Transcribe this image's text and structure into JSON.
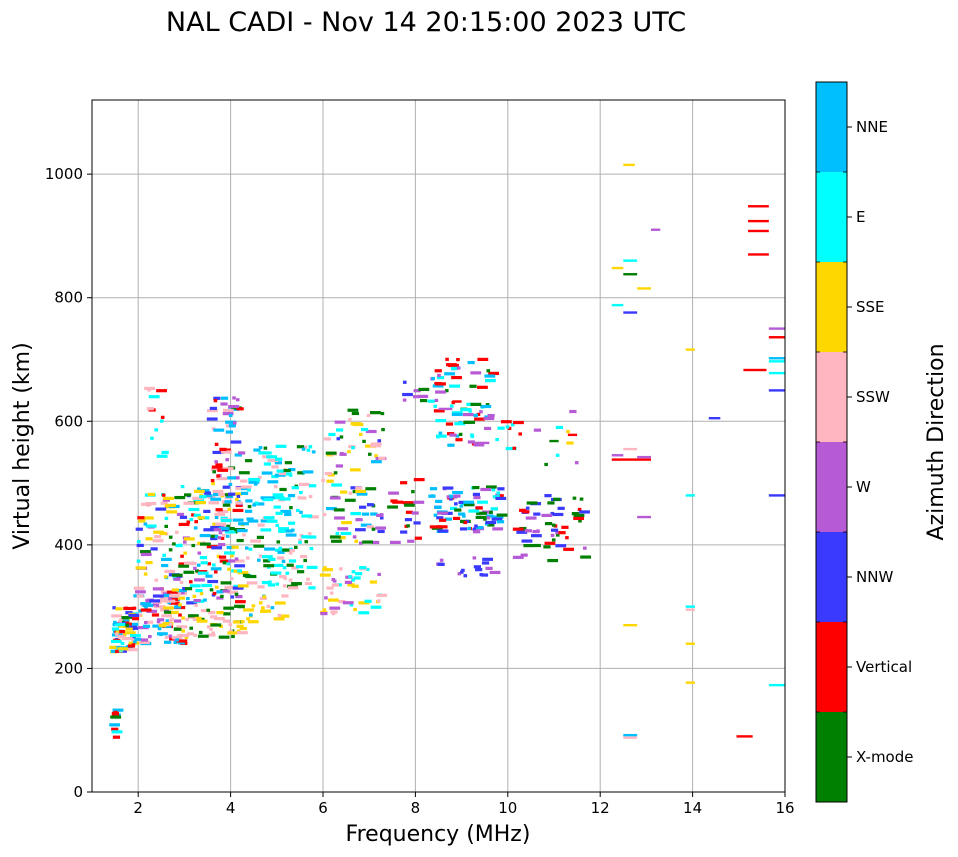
{
  "chart_data": {
    "type": "scatter",
    "title": "NAL CADI - Nov 14 20:15:00 2023 UTC",
    "xlabel": "Frequency (MHz)",
    "ylabel": "Virtual height (km)",
    "xlim": [
      1,
      16
    ],
    "ylim": [
      0,
      1120
    ],
    "xticks": [
      2,
      4,
      6,
      8,
      10,
      12,
      14,
      16
    ],
    "yticks": [
      0,
      200,
      400,
      600,
      800,
      1000
    ],
    "grid": true,
    "colorbar": {
      "title": "Azimuth Direction",
      "categories": [
        {
          "name": "X-mode",
          "color": "#008000"
        },
        {
          "name": "Vertical",
          "color": "#ff0000"
        },
        {
          "name": "NNW",
          "color": "#3a3aff"
        },
        {
          "name": "W",
          "color": "#b65ad6"
        },
        {
          "name": "SSW",
          "color": "#ffb6c1"
        },
        {
          "name": "SSE",
          "color": "#ffd700"
        },
        {
          "name": "E",
          "color": "#00ffff"
        },
        {
          "name": "NNE",
          "color": "#00bfff"
        }
      ]
    },
    "clusters": [
      {
        "f": [
          1.45,
          2.0
        ],
        "h": [
          225,
          300
        ],
        "n": 70,
        "colors": [
          "Vertical",
          "SSW",
          "E",
          "NNE",
          "SSE",
          "X-mode",
          "NNW"
        ]
      },
      {
        "f": [
          2.0,
          3.0
        ],
        "h": [
          240,
          330
        ],
        "n": 70,
        "colors": [
          "SSW",
          "Vertical",
          "NNE",
          "W"
        ]
      },
      {
        "f": [
          2.5,
          4.3
        ],
        "h": [
          250,
          300
        ],
        "n": 60,
        "colors": [
          "SSE",
          "SSW",
          "X-mode"
        ]
      },
      {
        "f": [
          2.0,
          4.3
        ],
        "h": [
          300,
          500
        ],
        "n": 230,
        "colors": [
          "NNE",
          "Vertical",
          "W",
          "NNW",
          "SSW",
          "X-mode",
          "SSE",
          "E"
        ]
      },
      {
        "f": [
          3.6,
          4.3
        ],
        "h": [
          400,
          640
        ],
        "n": 70,
        "colors": [
          "X-mode",
          "Vertical",
          "NNE",
          "NNW",
          "W",
          "SSW"
        ]
      },
      {
        "f": [
          4.3,
          5.8
        ],
        "h": [
          330,
          560
        ],
        "n": 160,
        "colors": [
          "E",
          "NNE",
          "E",
          "X-mode",
          "SSW"
        ]
      },
      {
        "f": [
          4.3,
          5.2
        ],
        "h": [
          275,
          320
        ],
        "n": 20,
        "colors": [
          "SSE",
          "SSW",
          "NNE"
        ]
      },
      {
        "f": [
          6.0,
          7.3
        ],
        "h": [
          400,
          620
        ],
        "n": 90,
        "colors": [
          "E",
          "NNE",
          "SSE",
          "SSW",
          "W",
          "NNW",
          "X-mode"
        ]
      },
      {
        "f": [
          6.0,
          7.3
        ],
        "h": [
          285,
          370
        ],
        "n": 45,
        "colors": [
          "SSE",
          "SSW",
          "E",
          "W"
        ]
      },
      {
        "f": [
          7.5,
          8.1
        ],
        "h": [
          400,
          510
        ],
        "n": 20,
        "colors": [
          "W",
          "NNW",
          "Vertical",
          "X-mode"
        ]
      },
      {
        "f": [
          8.3,
          9.9
        ],
        "h": [
          420,
          495
        ],
        "n": 85,
        "colors": [
          "NNE",
          "X-mode",
          "Vertical",
          "W",
          "E",
          "NNW"
        ]
      },
      {
        "f": [
          8.4,
          9.8
        ],
        "h": [
          350,
          380
        ],
        "n": 16,
        "colors": [
          "W",
          "NNW"
        ]
      },
      {
        "f": [
          8.3,
          9.7
        ],
        "h": [
          560,
          705
        ],
        "n": 75,
        "colors": [
          "NNE",
          "E",
          "X-mode",
          "Vertical",
          "W"
        ]
      },
      {
        "f": [
          7.6,
          8.2
        ],
        "h": [
          630,
          665
        ],
        "n": 8,
        "colors": [
          "X-mode",
          "NNW",
          "W"
        ]
      },
      {
        "f": [
          9.7,
          10.3
        ],
        "h": [
          555,
          605
        ],
        "n": 10,
        "colors": [
          "Vertical",
          "E"
        ]
      },
      {
        "f": [
          10.2,
          11.7
        ],
        "h": [
          370,
          480
        ],
        "n": 55,
        "colors": [
          "X-mode",
          "Vertical",
          "W",
          "NNW"
        ]
      },
      {
        "f": [
          10.5,
          11.6
        ],
        "h": [
          520,
          630
        ],
        "n": 8,
        "colors": [
          "W",
          "E",
          "X-mode",
          "SSE",
          "Vertical"
        ]
      },
      {
        "f": [
          2.2,
          2.6
        ],
        "h": [
          540,
          670
        ],
        "n": 12,
        "colors": [
          "Vertical",
          "SSW",
          "E"
        ]
      },
      {
        "f": [
          1.45,
          1.6
        ],
        "h": [
          88,
          140
        ],
        "n": 10,
        "colors": [
          "Vertical",
          "E",
          "NNE",
          "X-mode",
          "W"
        ]
      }
    ],
    "segments": [
      {
        "f": [
          12.5,
          12.75
        ],
        "h": 1015,
        "c": "SSE"
      },
      {
        "f": [
          13.1,
          13.3
        ],
        "h": 910,
        "c": "W"
      },
      {
        "f": [
          12.5,
          12.8
        ],
        "h": 860,
        "c": "E"
      },
      {
        "f": [
          12.25,
          12.5
        ],
        "h": 848,
        "c": "SSE"
      },
      {
        "f": [
          12.5,
          12.8
        ],
        "h": 838,
        "c": "X-mode"
      },
      {
        "f": [
          12.8,
          13.1
        ],
        "h": 815,
        "c": "SSE"
      },
      {
        "f": [
          12.25,
          12.5
        ],
        "h": 788,
        "c": "E"
      },
      {
        "f": [
          12.5,
          12.8
        ],
        "h": 776,
        "c": "NNW"
      },
      {
        "f": [
          12.5,
          12.8
        ],
        "h": 555,
        "c": "SSW"
      },
      {
        "f": [
          12.25,
          12.5
        ],
        "h": 545,
        "c": "W"
      },
      {
        "f": [
          12.25,
          13.1
        ],
        "h": 538,
        "c": "Vertical"
      },
      {
        "f": [
          12.8,
          13.1
        ],
        "h": 542,
        "c": "W"
      },
      {
        "f": [
          12.8,
          13.1
        ],
        "h": 445,
        "c": "W"
      },
      {
        "f": [
          13.85,
          14.05
        ],
        "h": 716,
        "c": "SSE"
      },
      {
        "f": [
          14.35,
          14.6
        ],
        "h": 605,
        "c": "NNW"
      },
      {
        "f": [
          13.85,
          14.05
        ],
        "h": 480,
        "c": "E"
      },
      {
        "f": [
          13.85,
          14.05
        ],
        "h": 300,
        "c": "E"
      },
      {
        "f": [
          13.85,
          14.05
        ],
        "h": 295,
        "c": "SSW"
      },
      {
        "f": [
          12.5,
          12.8
        ],
        "h": 270,
        "c": "SSE"
      },
      {
        "f": [
          13.85,
          14.05
        ],
        "h": 240,
        "c": "SSE"
      },
      {
        "f": [
          13.85,
          14.05
        ],
        "h": 177,
        "c": "SSE"
      },
      {
        "f": [
          12.5,
          12.8
        ],
        "h": 92,
        "c": "NNE"
      },
      {
        "f": [
          12.5,
          12.8
        ],
        "h": 88,
        "c": "SSW"
      },
      {
        "f": [
          14.95,
          15.3
        ],
        "h": 90,
        "c": "Vertical"
      },
      {
        "f": [
          15.2,
          15.65
        ],
        "h": 948,
        "c": "Vertical"
      },
      {
        "f": [
          15.2,
          15.65
        ],
        "h": 924,
        "c": "Vertical"
      },
      {
        "f": [
          15.2,
          15.65
        ],
        "h": 908,
        "c": "Vertical"
      },
      {
        "f": [
          15.2,
          15.65
        ],
        "h": 870,
        "c": "Vertical"
      },
      {
        "f": [
          15.65,
          16.0
        ],
        "h": 750,
        "c": "W"
      },
      {
        "f": [
          15.65,
          16.0
        ],
        "h": 736,
        "c": "Vertical"
      },
      {
        "f": [
          15.65,
          16.0
        ],
        "h": 702,
        "c": "NNE"
      },
      {
        "f": [
          15.65,
          16.0
        ],
        "h": 697,
        "c": "E"
      },
      {
        "f": [
          15.1,
          15.6
        ],
        "h": 683,
        "c": "Vertical"
      },
      {
        "f": [
          15.65,
          16.0
        ],
        "h": 678,
        "c": "E"
      },
      {
        "f": [
          15.65,
          16.0
        ],
        "h": 650,
        "c": "NNW"
      },
      {
        "f": [
          15.65,
          16.0
        ],
        "h": 480,
        "c": "NNW"
      },
      {
        "f": [
          15.65,
          16.0
        ],
        "h": 173,
        "c": "E"
      },
      {
        "f": [
          8.5,
          8.8
        ],
        "h": 620,
        "c": "W"
      },
      {
        "f": [
          9.3,
          9.6
        ],
        "h": 565,
        "c": "W"
      },
      {
        "f": [
          8.8,
          9.0
        ],
        "h": 632,
        "c": "Vertical"
      },
      {
        "f": [
          11.3,
          11.5
        ],
        "h": 578,
        "c": "Vertical"
      },
      {
        "f": [
          10.9,
          11.1
        ],
        "h": 568,
        "c": "X-mode"
      }
    ]
  }
}
